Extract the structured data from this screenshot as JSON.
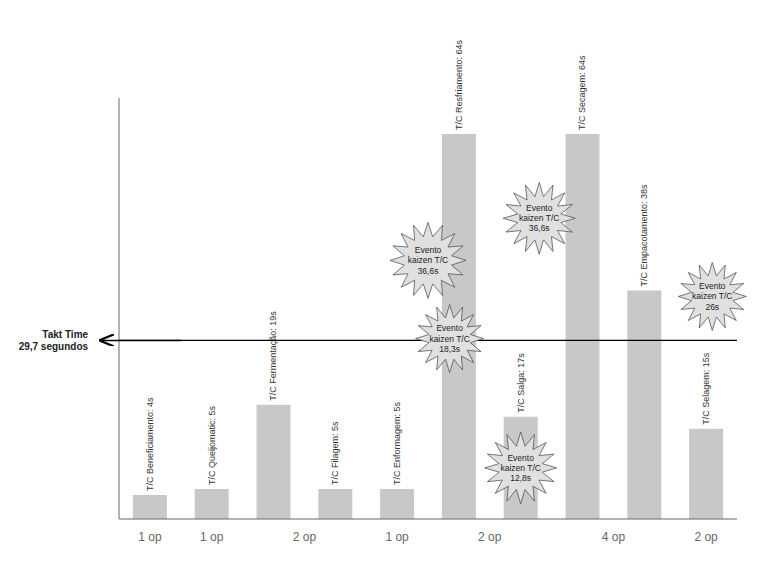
{
  "chart_data": {
    "type": "bar",
    "categories": [
      "1 op",
      "1 op",
      "2 op",
      null,
      "1 op",
      "2 op",
      null,
      "4 op",
      null,
      "2 op"
    ],
    "values": [
      4,
      5,
      19,
      5,
      5,
      64,
      17,
      64,
      38,
      15
    ],
    "value_labels": [
      "T/C Beneficiamento: 4s",
      "T/C Queijomatic: 5s",
      "T/C Fermentação: 19s",
      "T/C Filagem: 5s",
      "T/C Enformagem: 5s",
      "T/C Resfriamento: 64s",
      "T/C Salga: 17s",
      "T/C Secagem: 64s",
      "T/C Empacotamento: 38s",
      "T/C Selagem: 15s"
    ],
    "data_labels": true,
    "color": "#c8c8c8",
    "ylim": [
      0,
      70
    ],
    "tick_labels": "x",
    "grid": false,
    "reference_line": {
      "value": 29.7,
      "label": "Takt Time\n29,7 segundos"
    },
    "annotations": [
      "Evento\nkaizen T/C\n36,6s",
      "Evento\nkaizen T/C\n18,3s",
      "Evento\nkaizen T/C\n36,6s",
      "Evento\nkaizen T/C\n12,8s",
      "Evento\nkaizen T/C\n26s"
    ]
  }
}
